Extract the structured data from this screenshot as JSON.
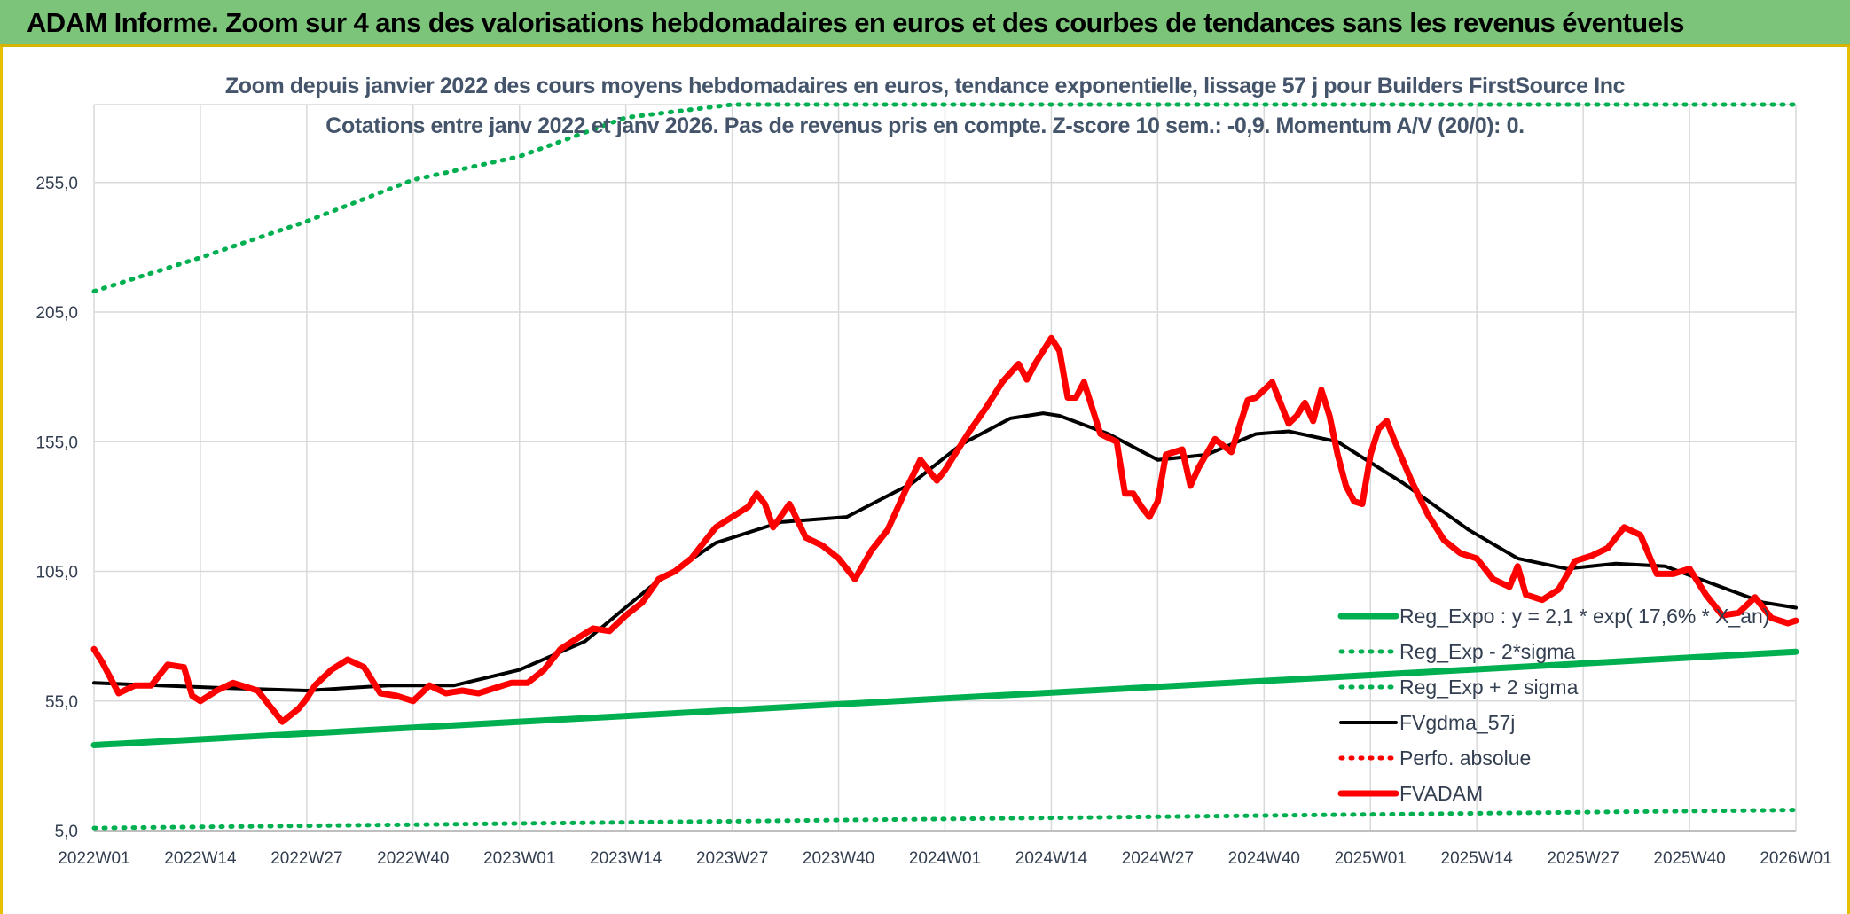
{
  "header": {
    "banner_title": "ADAM Informe. Zoom sur 4 ans des valorisations hebdomadaires en euros et des courbes de tendances sans les revenus éventuels",
    "subtitle_line1": "Zoom depuis janvier 2022 des cours moyens hebdomadaires en euros, tendance exponentielle, lissage 57 j pour Builders FirstSource Inc",
    "subtitle_line2": "Cotations entre janv 2022 et janv 2026. Pas de revenus pris en compte. Z-score 10 sem.: -0,9. Momentum A/V (20/0): 0."
  },
  "colors": {
    "green": "#00b050",
    "red": "#ff0000",
    "black": "#000000",
    "grid": "#d9d9d9",
    "banner": "#7cc47a"
  },
  "chart_data": {
    "type": "line",
    "title": "Zoom depuis janvier 2022 des cours moyens hebdomadaires en euros, tendance exponentielle, lissage 57 j pour Builders FirstSource Inc",
    "ylim": [
      5,
      285
    ],
    "yticks": [
      "5,0",
      "55,0",
      "105,0",
      "155,0",
      "205,0",
      "255,0"
    ],
    "ytick_values": [
      5,
      55,
      105,
      155,
      205,
      255
    ],
    "x_start": 0,
    "x_end": 208,
    "xticks": [
      "2022W01",
      "2022W14",
      "2022W27",
      "2022W40",
      "2023W01",
      "2023W14",
      "2023W27",
      "2023W40",
      "2024W01",
      "2024W14",
      "2024W27",
      "2024W40",
      "2025W01",
      "2025W14",
      "2025W27",
      "2025W40",
      "2026W01"
    ],
    "xtick_weeks": [
      0,
      13,
      26,
      39,
      52,
      65,
      78,
      91,
      104,
      117,
      130,
      143,
      156,
      169,
      182,
      195,
      208
    ],
    "grid": true,
    "legend_position": "bottom-right",
    "series": [
      {
        "name": "Reg_Expo : y = 2,1 * exp( 17,6% *  X_an)",
        "style": "solid-thick",
        "color": "#00b050",
        "x": [
          0,
          208
        ],
        "y": [
          38,
          74
        ]
      },
      {
        "name": "Reg_Exp - 2*sigma",
        "style": "dotted",
        "color": "#00b050",
        "x": [
          0,
          208
        ],
        "y": [
          6,
          13
        ]
      },
      {
        "name": "Reg_Exp + 2 sigma",
        "style": "dotted",
        "color": "#00b050",
        "x": [
          0,
          13,
          26,
          39,
          52,
          65,
          78,
          86,
          183,
          208
        ],
        "y": [
          213,
          226,
          240,
          256,
          265,
          280,
          290,
          291,
          291,
          291
        ]
      },
      {
        "name": "FVgdma_57j",
        "style": "solid",
        "color": "#000000",
        "x": [
          0,
          8,
          16,
          26,
          36,
          44,
          52,
          60,
          68,
          76,
          84,
          92,
          100,
          106,
          112,
          116,
          118,
          124,
          130,
          136,
          142,
          146,
          152,
          160,
          168,
          174,
          180,
          186,
          192,
          198,
          204,
          208
        ],
        "y": [
          62,
          61,
          60,
          59,
          61,
          61,
          67,
          78,
          99,
          116,
          124,
          126,
          139,
          154,
          164,
          166,
          165,
          158,
          148,
          150,
          158,
          159,
          155,
          139,
          121,
          110,
          106,
          108,
          107,
          100,
          93,
          91
        ]
      },
      {
        "name": "Perfo. absolue",
        "style": "dotted",
        "color": "#ff0000",
        "x": [],
        "y": []
      },
      {
        "name": "FVADAM",
        "style": "solid-thick",
        "color": "#ff0000",
        "x": [
          0,
          1,
          3,
          5,
          7,
          9,
          11,
          12,
          13,
          15,
          17,
          18,
          20,
          23,
          25,
          26,
          27,
          29,
          31,
          33,
          35,
          37,
          39,
          41,
          43,
          45,
          47,
          49,
          51,
          53,
          55,
          57,
          59,
          61,
          63,
          65,
          67,
          69,
          71,
          73,
          75,
          76,
          78,
          80,
          81,
          82,
          83,
          85,
          87,
          89,
          91,
          93,
          95,
          97,
          99,
          101,
          103,
          104,
          105,
          107,
          109,
          111,
          113,
          114,
          115,
          117,
          118,
          119,
          120,
          121,
          123,
          125,
          126,
          127,
          128,
          129,
          130,
          131,
          133,
          134,
          135,
          137,
          139,
          141,
          142,
          143,
          144,
          145,
          146,
          147,
          148,
          149,
          150,
          151,
          152,
          153,
          154,
          155,
          156,
          157,
          158,
          159,
          161,
          163,
          165,
          167,
          169,
          171,
          173,
          174,
          175,
          177,
          179,
          181,
          183,
          185,
          187,
          189,
          191,
          193,
          195,
          197,
          199,
          201,
          203,
          205,
          207,
          208
        ],
        "y": [
          75,
          70,
          58,
          61,
          61,
          69,
          68,
          57,
          55,
          59,
          62,
          61,
          59,
          47,
          52,
          56,
          61,
          67,
          71,
          68,
          58,
          57,
          55,
          61,
          58,
          59,
          58,
          60,
          62,
          62,
          67,
          75,
          79,
          83,
          82,
          88,
          93,
          102,
          105,
          110,
          118,
          122,
          126,
          130,
          135,
          131,
          122,
          131,
          118,
          115,
          110,
          102,
          113,
          121,
          135,
          148,
          140,
          144,
          149,
          159,
          168,
          178,
          185,
          179,
          185,
          195,
          190,
          172,
          172,
          178,
          158,
          155,
          135,
          135,
          130,
          126,
          132,
          150,
          152,
          138,
          145,
          156,
          151,
          171,
          172,
          175,
          178,
          170,
          162,
          165,
          170,
          163,
          175,
          165,
          150,
          138,
          132,
          131,
          150,
          160,
          163,
          155,
          140,
          127,
          117,
          112,
          110,
          102,
          99,
          107,
          96,
          94,
          98,
          109,
          111,
          114,
          122,
          119,
          104,
          104,
          106,
          96,
          88,
          89,
          95,
          87,
          85,
          86
        ]
      }
    ]
  }
}
